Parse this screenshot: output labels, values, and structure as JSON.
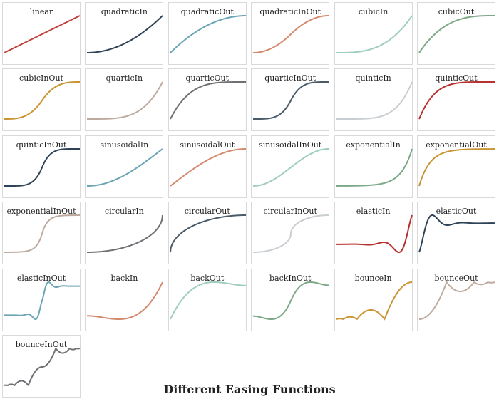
{
  "title": "Different Easing Functions",
  "chart_data": {
    "type": "line",
    "title": "Different Easing Functions",
    "x_range": [
      0,
      1
    ],
    "y_range_note": "each panel autoscaled; y from 0 to 1 for standard easings",
    "grid": false,
    "panels": [
      {
        "name": "linear",
        "color": "#c0413b",
        "fn": "linear"
      },
      {
        "name": "quadraticIn",
        "color": "#2f4358",
        "fn": "quadraticIn"
      },
      {
        "name": "quadraticOut",
        "color": "#6ba4b4",
        "fn": "quadraticOut"
      },
      {
        "name": "quadraticInOut",
        "color": "#d48a6e",
        "fn": "quadraticInOut"
      },
      {
        "name": "cubicIn",
        "color": "#9fcdbf",
        "fn": "cubicIn"
      },
      {
        "name": "cubicOut",
        "color": "#7ba886",
        "fn": "cubicOut"
      },
      {
        "name": "cubicInOut",
        "color": "#c99533",
        "fn": "cubicInOut"
      },
      {
        "name": "quarticIn",
        "color": "#bfaaa0",
        "fn": "quarticIn"
      },
      {
        "name": "quarticOut",
        "color": "#6e7074",
        "fn": "quarticOut"
      },
      {
        "name": "quarticInOut",
        "color": "#4a5b6a",
        "fn": "quarticInOut"
      },
      {
        "name": "quinticIn",
        "color": "#c9ced2",
        "fn": "quinticIn"
      },
      {
        "name": "quinticOut",
        "color": "#b8312e",
        "fn": "quinticOut"
      },
      {
        "name": "quinticInOut",
        "color": "#2f4358",
        "fn": "quinticInOut"
      },
      {
        "name": "sinusoidalIn",
        "color": "#6ba4b4",
        "fn": "sinusoidalIn"
      },
      {
        "name": "sinusoidalOut",
        "color": "#d48a6e",
        "fn": "sinusoidalOut"
      },
      {
        "name": "sinusoidalInOut",
        "color": "#9fcdbf",
        "fn": "sinusoidalInOut"
      },
      {
        "name": "exponentialIn",
        "color": "#7ba886",
        "fn": "exponentialIn"
      },
      {
        "name": "exponentialOut",
        "color": "#c99533",
        "fn": "exponentialOut"
      },
      {
        "name": "exponentialInOut",
        "color": "#bfaaa0",
        "fn": "exponentialInOut"
      },
      {
        "name": "circularIn",
        "color": "#6e7074",
        "fn": "circularIn"
      },
      {
        "name": "circularOut",
        "color": "#4a5b6a",
        "fn": "circularOut"
      },
      {
        "name": "circularInOut",
        "color": "#c9ced2",
        "fn": "circularInOut"
      },
      {
        "name": "elasticIn",
        "color": "#b8312e",
        "fn": "elasticIn"
      },
      {
        "name": "elasticOut",
        "color": "#2f4358",
        "fn": "elasticOut"
      },
      {
        "name": "elasticInOut",
        "color": "#6ba4b4",
        "fn": "elasticInOut"
      },
      {
        "name": "backIn",
        "color": "#d48a6e",
        "fn": "backIn"
      },
      {
        "name": "backOut",
        "color": "#9fcdbf",
        "fn": "backOut"
      },
      {
        "name": "backInOut",
        "color": "#7ba886",
        "fn": "backInOut"
      },
      {
        "name": "bounceIn",
        "color": "#c99533",
        "fn": "bounceIn"
      },
      {
        "name": "bounceOut",
        "color": "#bfaaa0",
        "fn": "bounceOut"
      },
      {
        "name": "bounceInOut",
        "color": "#6e7074",
        "fn": "bounceInOut"
      }
    ]
  }
}
